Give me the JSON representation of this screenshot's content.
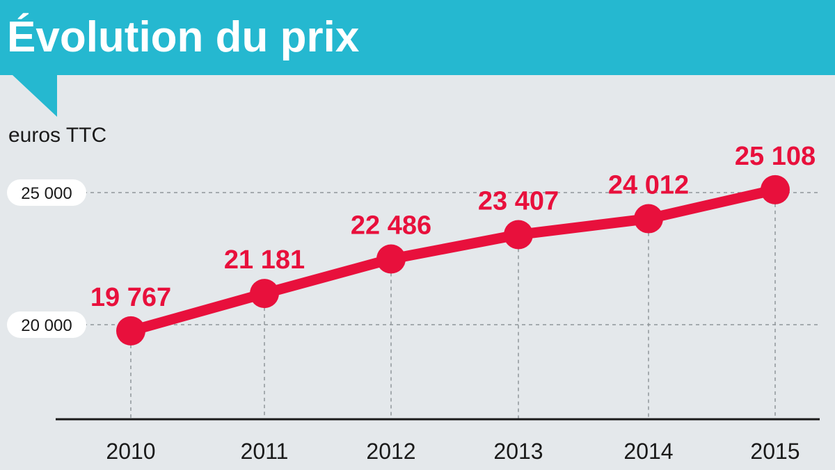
{
  "chart_data": {
    "type": "line",
    "title": "Évolution du prix",
    "unit_label": "euros TTC",
    "x": [
      "2010",
      "2011",
      "2012",
      "2013",
      "2014",
      "2015"
    ],
    "values": [
      19767,
      21181,
      22486,
      23407,
      24012,
      25108
    ],
    "value_labels": [
      "19 767",
      "21 181",
      "22 486",
      "23 407",
      "24 012",
      "25 108"
    ],
    "yticks": [
      20000,
      25000
    ],
    "ytick_labels": [
      "20 000",
      "25 000"
    ],
    "ylim": [
      16500,
      27600
    ],
    "grid": "horizontal dashed at y ticks",
    "colors": {
      "line": "#e8103c",
      "header": "#25b8d0",
      "background": "#e4e8eb",
      "axis": "#1a1a1a"
    }
  }
}
